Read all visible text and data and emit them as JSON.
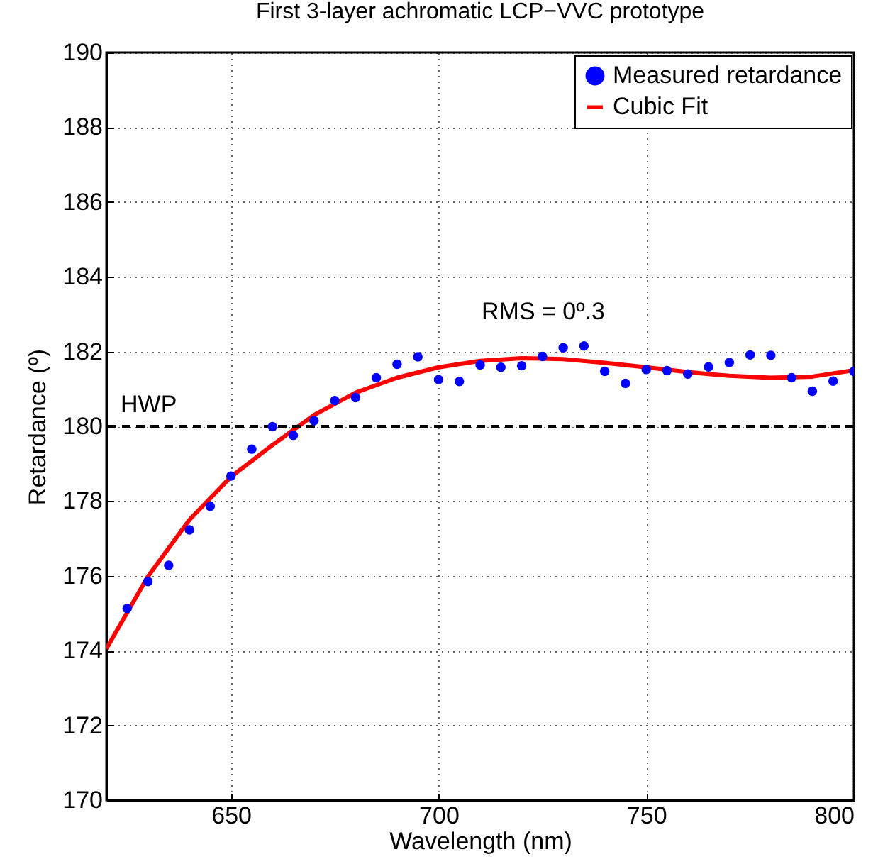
{
  "chart_data": {
    "type": "scatter",
    "title": "First 3-layer achromatic LCP−VVC prototype",
    "xlabel": "Wavelength (nm)",
    "ylabel": "Retardance (º)",
    "xlim": [
      620,
      800
    ],
    "xticks": [
      650,
      700,
      750,
      800
    ],
    "ylim": [
      170,
      190
    ],
    "yticks": [
      170,
      172,
      174,
      176,
      178,
      180,
      182,
      184,
      186,
      188,
      190
    ],
    "grid": true,
    "legend": "top right",
    "marker": "circle",
    "annotations": [
      "RMS = 0º.3"
    ],
    "ref_lines": [
      {
        "axis": "y",
        "value": 180,
        "label": "HWP",
        "color": "#000000",
        "line_style": "dashed"
      }
    ],
    "x": [
      625,
      630,
      635,
      640,
      645,
      650,
      655,
      660,
      665,
      670,
      675,
      680,
      685,
      690,
      695,
      700,
      705,
      710,
      715,
      720,
      725,
      730,
      735,
      740,
      745,
      750,
      755,
      760,
      765,
      770,
      775,
      780,
      785,
      790,
      795,
      800
    ],
    "series": [
      {
        "name": "Measured retardance",
        "color": "#0000ff",
        "values": [
          175.13,
          175.85,
          176.28,
          177.23,
          177.86,
          178.67,
          179.39,
          179.99,
          179.76,
          180.15,
          180.69,
          180.77,
          181.3,
          181.66,
          181.86,
          181.25,
          181.2,
          181.64,
          181.58,
          181.62,
          181.87,
          182.1,
          182.15,
          181.47,
          181.15,
          181.52,
          181.49,
          181.4,
          181.59,
          181.71,
          181.91,
          181.9,
          181.3,
          180.94,
          181.21,
          181.47
        ]
      },
      {
        "name": "Cubic Fit",
        "type": "line",
        "color": "#ff0000",
        "line_style": "solid",
        "marker": "none",
        "x": [
          620,
          630,
          640,
          650,
          660,
          670,
          680,
          690,
          700,
          710,
          720,
          730,
          740,
          750,
          760,
          770,
          780,
          790,
          800
        ],
        "values": [
          174.05,
          175.98,
          177.5,
          178.65,
          179.5,
          180.3,
          180.9,
          181.3,
          181.58,
          181.75,
          181.82,
          181.8,
          181.7,
          181.58,
          181.45,
          181.35,
          181.3,
          181.33,
          181.5
        ]
      }
    ]
  }
}
